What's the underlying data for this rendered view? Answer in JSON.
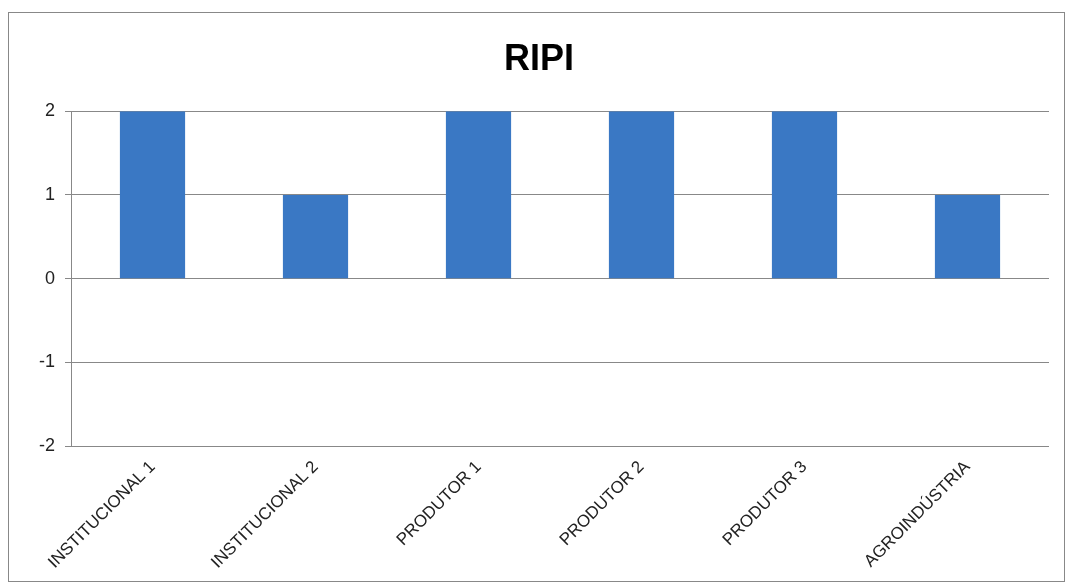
{
  "chart_data": {
    "type": "bar",
    "title": "RIPI",
    "categories": [
      "INSTITUCIONAL 1",
      "INSTITUCIONAL 2",
      "PRODUTOR 1",
      "PRODUTOR 2",
      "PRODUTOR 3",
      "AGROINDÚSTRIA"
    ],
    "values": [
      2,
      1,
      2,
      2,
      2,
      1
    ],
    "color": "#3a78c4",
    "ylim": [
      -2,
      2
    ],
    "yticks": [
      -2,
      -1,
      0,
      1,
      2
    ],
    "grid": "y"
  }
}
